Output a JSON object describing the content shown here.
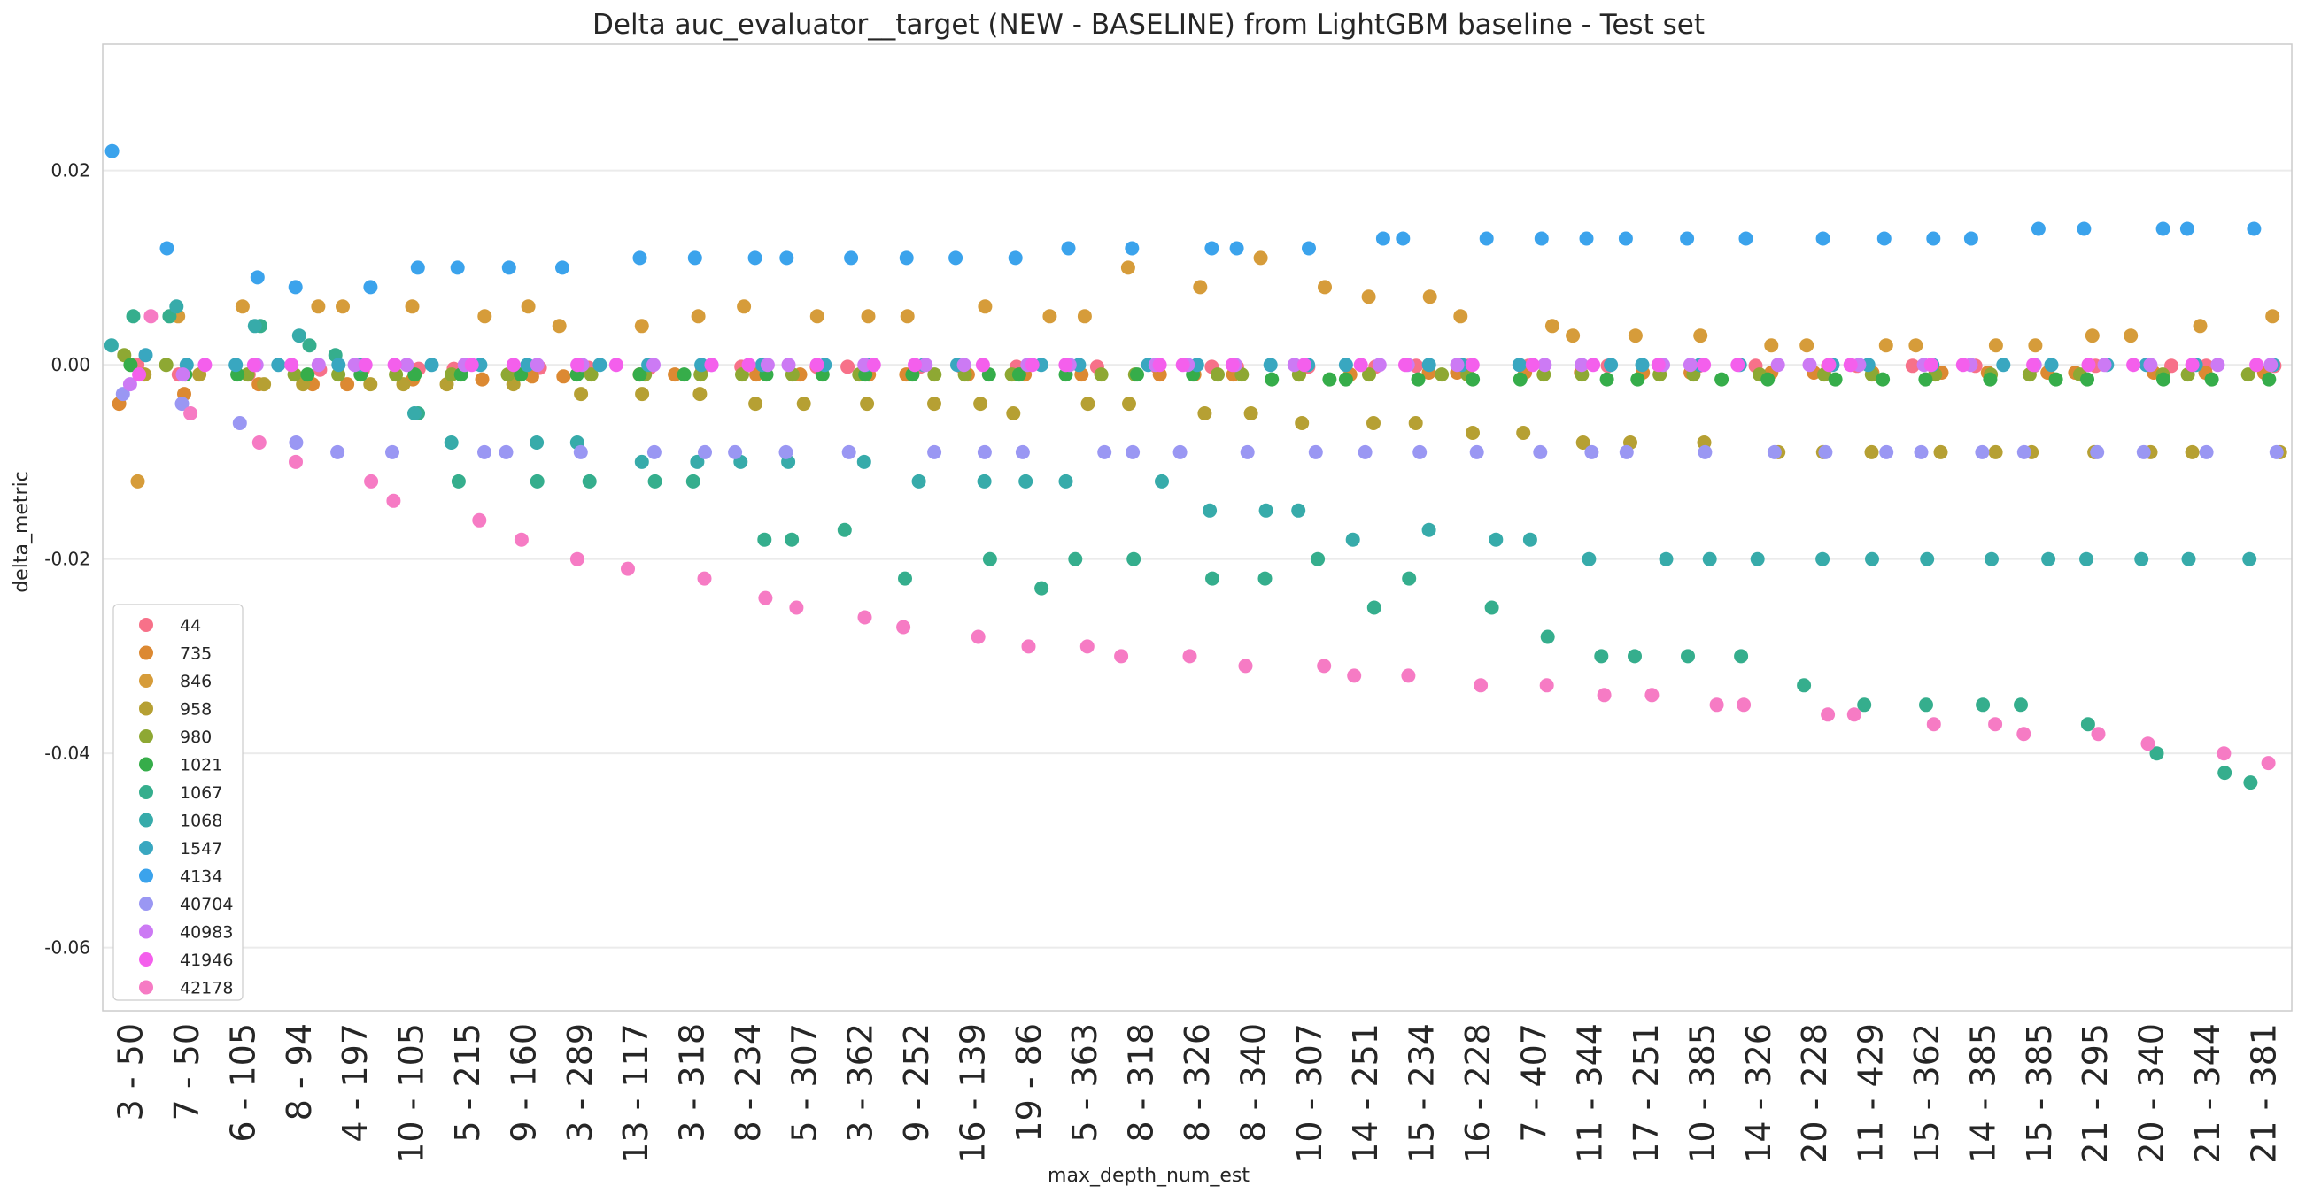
{
  "chart_data": {
    "type": "scatter",
    "title": "Delta auc_evaluator__target (NEW - BASELINE) from LightGBM baseline - Test set",
    "xlabel": "max_depth_num_est",
    "ylabel": "delta_metric",
    "ylim": [
      -0.0665,
      0.033
    ],
    "yticks": [
      {
        "value": 0.02,
        "label": "0.02"
      },
      {
        "value": 0.0,
        "label": "0.00"
      },
      {
        "value": -0.02,
        "label": "-0.02"
      },
      {
        "value": -0.04,
        "label": "-0.04"
      },
      {
        "value": -0.06,
        "label": "-0.06"
      }
    ],
    "categories": [
      "3 - 50",
      "7 - 50",
      "6 - 105",
      "8 - 94",
      "4 - 197",
      "10 - 105",
      "5 - 215",
      "9 - 160",
      "3 - 289",
      "13 - 117",
      "3 - 318",
      "8 - 234",
      "5 - 307",
      "3 - 362",
      "9 - 252",
      "16 - 139",
      "19 - 86",
      "5 - 363",
      "8 - 318",
      "8 - 326",
      "8 - 340",
      "10 - 307",
      "14 - 251",
      "15 - 234",
      "16 - 228",
      "7 - 407",
      "11 - 344",
      "17 - 251",
      "10 - 385",
      "14 - 326",
      "20 - 228",
      "11 - 429",
      "15 - 362",
      "14 - 385",
      "15 - 385",
      "21 - 295",
      "20 - 340",
      "21 - 344",
      "21 - 381"
    ],
    "grid": true,
    "legend_position": "lower-left",
    "series": [
      {
        "name": "44",
        "color": "#f77189",
        "values": [
          0.0,
          -0.001,
          -0.001,
          -0.0005,
          -0.0005,
          -0.0004,
          -0.0004,
          -0.0003,
          -0.0003,
          -0.0003,
          -0.0003,
          -0.0002,
          -0.0002,
          -0.0002,
          -0.0002,
          -0.0002,
          -0.0002,
          -0.0002,
          -0.0002,
          -0.0002,
          -0.0002,
          -0.0002,
          -0.0002,
          -0.0001,
          -0.0001,
          -0.0001,
          -0.0001,
          -0.0001,
          -0.0001,
          -0.0001,
          -0.0001,
          -0.0001,
          -0.0001,
          -0.0001,
          -0.0001,
          -0.0001,
          -0.0001,
          -0.0001,
          -0.0001
        ]
      },
      {
        "name": "735",
        "color": "#dc8932",
        "values": [
          -0.004,
          -0.003,
          -0.002,
          -0.002,
          -0.002,
          -0.0015,
          -0.0015,
          -0.0012,
          -0.0012,
          -0.001,
          -0.001,
          -0.001,
          -0.001,
          -0.001,
          -0.001,
          -0.001,
          -0.001,
          -0.001,
          -0.001,
          -0.001,
          -0.001,
          -0.001,
          -0.001,
          -0.0008,
          -0.0008,
          -0.0008,
          -0.0008,
          -0.0008,
          -0.0008,
          -0.0008,
          -0.0008,
          -0.0008,
          -0.0008,
          -0.0008,
          -0.0008,
          -0.0008,
          -0.0008,
          -0.0008,
          -0.0008
        ]
      },
      {
        "name": "846",
        "color": "#d69c3a",
        "values": [
          -0.012,
          0.005,
          0.006,
          0.006,
          0.006,
          0.006,
          0.005,
          0.006,
          0.004,
          0.004,
          0.005,
          0.006,
          0.005,
          0.005,
          0.005,
          0.006,
          0.005,
          0.005,
          0.01,
          0.008,
          0.011,
          0.008,
          0.007,
          0.007,
          0.005,
          0.004,
          0.003,
          0.003,
          0.003,
          0.002,
          0.002,
          0.002,
          0.002,
          0.002,
          0.002,
          0.003,
          0.003,
          0.004,
          0.005
        ]
      },
      {
        "name": "958",
        "color": "#b6a033",
        "values": [
          -0.001,
          -0.001,
          -0.002,
          -0.002,
          -0.002,
          -0.002,
          -0.002,
          -0.002,
          -0.003,
          -0.003,
          -0.003,
          -0.004,
          -0.004,
          -0.004,
          -0.004,
          -0.004,
          -0.005,
          -0.004,
          -0.004,
          -0.005,
          -0.005,
          -0.006,
          -0.006,
          -0.006,
          -0.007,
          -0.007,
          -0.008,
          -0.008,
          -0.008,
          -0.009,
          -0.009,
          -0.009,
          -0.009,
          -0.009,
          -0.009,
          -0.009,
          -0.009,
          -0.009,
          -0.009
        ]
      },
      {
        "name": "980",
        "color": "#8ea833",
        "values": [
          0.001,
          0.0,
          -0.001,
          -0.001,
          -0.001,
          -0.001,
          -0.001,
          -0.001,
          -0.001,
          -0.001,
          -0.001,
          -0.001,
          -0.001,
          -0.001,
          -0.001,
          -0.001,
          -0.001,
          -0.001,
          -0.001,
          -0.001,
          -0.001,
          -0.001,
          -0.001,
          -0.001,
          -0.001,
          -0.001,
          -0.001,
          -0.001,
          -0.001,
          -0.001,
          -0.001,
          -0.001,
          -0.001,
          -0.001,
          -0.001,
          -0.001,
          -0.001,
          -0.001,
          -0.001
        ]
      },
      {
        "name": "1021",
        "color": "#36ad4a",
        "values": [
          0.0,
          -0.001,
          -0.001,
          -0.001,
          -0.001,
          -0.001,
          -0.001,
          -0.001,
          -0.001,
          -0.001,
          -0.001,
          -0.001,
          -0.001,
          -0.001,
          -0.001,
          -0.001,
          -0.001,
          -0.001,
          -0.001,
          -0.001,
          -0.0015,
          -0.0015,
          -0.0015,
          -0.0015,
          -0.0015,
          -0.0015,
          -0.0015,
          -0.0015,
          -0.0015,
          -0.0015,
          -0.0015,
          -0.0015,
          -0.0015,
          -0.0015,
          -0.0015,
          -0.0015,
          -0.0015,
          -0.0015,
          -0.0015
        ]
      },
      {
        "name": "1067",
        "color": "#35ae8d",
        "values": [
          0.005,
          0.005,
          0.004,
          0.002,
          0.001,
          -0.005,
          -0.012,
          -0.012,
          -0.012,
          -0.012,
          -0.012,
          -0.018,
          -0.018,
          -0.017,
          -0.022,
          -0.02,
          -0.023,
          -0.02,
          -0.02,
          -0.022,
          -0.022,
          -0.02,
          -0.025,
          -0.022,
          -0.025,
          -0.028,
          -0.03,
          -0.03,
          -0.03,
          -0.03,
          -0.033,
          -0.035,
          -0.035,
          -0.035,
          -0.035,
          -0.037,
          -0.04,
          -0.042,
          -0.043
        ]
      },
      {
        "name": "1068",
        "color": "#37abaa",
        "values": [
          0.002,
          0.006,
          0.004,
          0.003,
          0.0,
          -0.005,
          -0.008,
          -0.008,
          -0.008,
          -0.01,
          -0.01,
          -0.01,
          -0.01,
          -0.01,
          -0.012,
          -0.012,
          -0.012,
          -0.012,
          -0.012,
          -0.015,
          -0.015,
          -0.015,
          -0.018,
          -0.017,
          -0.018,
          -0.018,
          -0.02,
          -0.02,
          -0.02,
          -0.02,
          -0.02,
          -0.02,
          -0.02,
          -0.02,
          -0.02,
          -0.02,
          -0.02,
          -0.02,
          -0.02
        ]
      },
      {
        "name": "1547",
        "color": "#39a7c0",
        "values": [
          0.001,
          0.0,
          0.0,
          0.0,
          0.0,
          0.0,
          0.0,
          0.0,
          0.0,
          0.0,
          0.0,
          0.0,
          0.0,
          0.0,
          0.0,
          0.0,
          0.0,
          0.0,
          0.0,
          0.0,
          0.0,
          0.0,
          0.0,
          0.0,
          0.0,
          0.0,
          0.0,
          0.0,
          0.0,
          0.0,
          0.0,
          0.0,
          0.0,
          0.0,
          0.0,
          0.0,
          0.0,
          0.0,
          0.0
        ]
      },
      {
        "name": "4134",
        "color": "#3ba3ec",
        "values": [
          0.022,
          0.012,
          0.009,
          0.008,
          0.008,
          0.01,
          0.01,
          0.01,
          0.01,
          0.011,
          0.011,
          0.011,
          0.011,
          0.011,
          0.011,
          0.011,
          0.011,
          0.012,
          0.012,
          0.012,
          0.012,
          0.012,
          0.013,
          0.013,
          0.013,
          0.013,
          0.013,
          0.013,
          0.013,
          0.013,
          0.013,
          0.013,
          0.013,
          0.013,
          0.014,
          0.014,
          0.014,
          0.014,
          0.014
        ]
      },
      {
        "name": "40704",
        "color": "#9a97f3",
        "values": [
          -0.003,
          -0.004,
          -0.006,
          -0.008,
          -0.009,
          -0.009,
          -0.009,
          -0.009,
          -0.009,
          -0.009,
          -0.009,
          -0.009,
          -0.009,
          -0.009,
          -0.009,
          -0.009,
          -0.009,
          -0.009,
          -0.009,
          -0.009,
          -0.009,
          -0.009,
          -0.009,
          -0.009,
          -0.009,
          -0.009,
          -0.009,
          -0.009,
          -0.009,
          -0.009,
          -0.009,
          -0.009,
          -0.009,
          -0.009,
          -0.009,
          -0.009,
          -0.009,
          -0.009,
          -0.009
        ]
      },
      {
        "name": "40983",
        "color": "#cc7af4",
        "values": [
          -0.002,
          -0.001,
          0.0,
          0.0,
          0.0,
          0.0,
          0.0,
          0.0,
          0.0,
          0.0,
          0.0,
          0.0,
          0.0,
          0.0,
          0.0,
          0.0,
          0.0,
          0.0,
          0.0,
          0.0,
          0.0,
          0.0,
          0.0,
          0.0,
          0.0,
          0.0,
          0.0,
          0.0,
          0.0,
          0.0,
          0.0,
          0.0,
          0.0,
          0.0,
          0.0,
          0.0,
          0.0,
          0.0,
          0.0
        ]
      },
      {
        "name": "41946",
        "color": "#f45fec",
        "values": [
          -0.001,
          0.0,
          0.0,
          0.0,
          0.0,
          0.0,
          0.0,
          0.0,
          0.0,
          0.0,
          0.0,
          0.0,
          0.0,
          0.0,
          0.0,
          0.0,
          0.0,
          0.0,
          0.0,
          0.0,
          0.0,
          0.0,
          0.0,
          0.0,
          0.0,
          0.0,
          0.0,
          0.0,
          0.0,
          0.0,
          0.0,
          0.0,
          0.0,
          0.0,
          0.0,
          0.0,
          0.0,
          0.0,
          0.0
        ]
      },
      {
        "name": "42178",
        "color": "#f67bc4",
        "values": [
          0.005,
          -0.005,
          -0.008,
          -0.01,
          -0.012,
          -0.014,
          -0.016,
          -0.018,
          -0.02,
          -0.021,
          -0.022,
          -0.024,
          -0.025,
          -0.026,
          -0.027,
          -0.028,
          -0.029,
          -0.029,
          -0.03,
          -0.03,
          -0.031,
          -0.031,
          -0.032,
          -0.032,
          -0.033,
          -0.033,
          -0.034,
          -0.034,
          -0.035,
          -0.035,
          -0.036,
          -0.036,
          -0.037,
          -0.037,
          -0.038,
          -0.038,
          -0.039,
          -0.04,
          -0.041
        ]
      }
    ]
  }
}
